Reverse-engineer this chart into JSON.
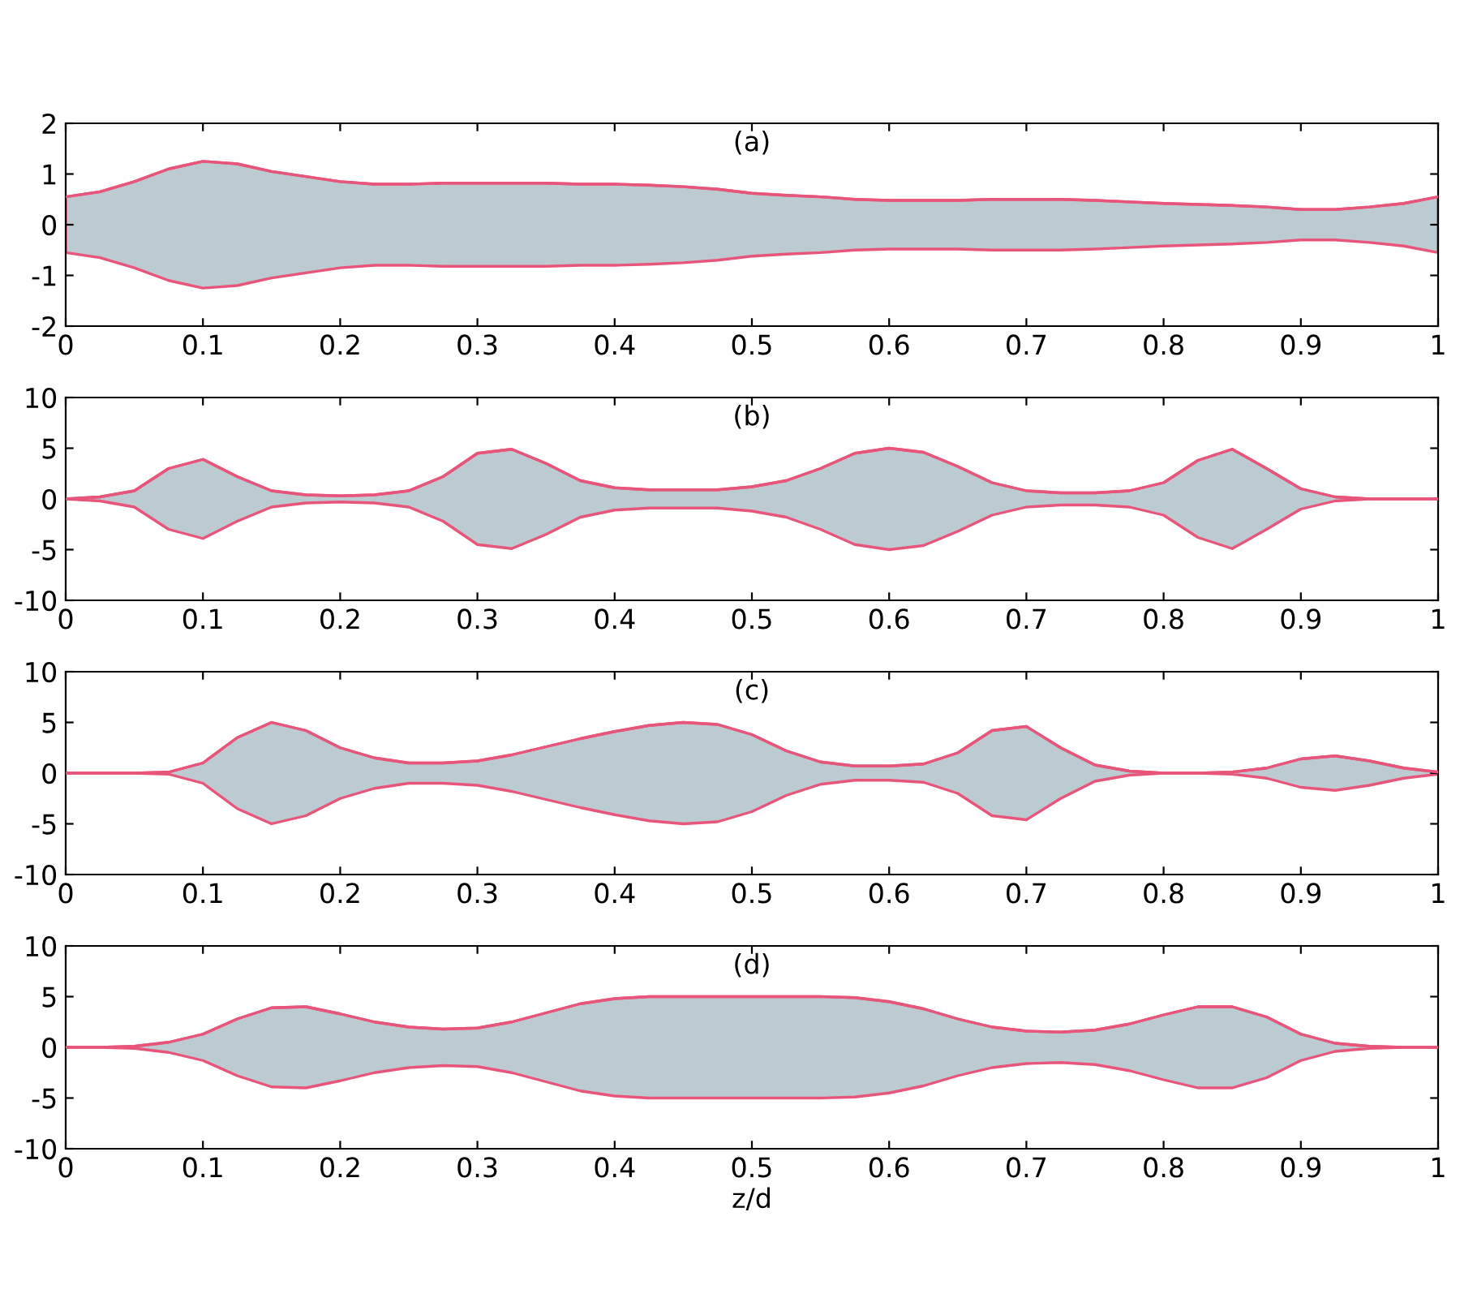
{
  "chart_data": [
    {
      "type": "line",
      "annotations": [
        "(a)"
      ],
      "xlim": [
        0,
        1
      ],
      "ylim": [
        -2,
        2
      ],
      "xticks": [
        0,
        0.1,
        0.2,
        0.3,
        0.4,
        0.5,
        0.6,
        0.7,
        0.8,
        0.9,
        1
      ],
      "yticks": [
        -2,
        -1,
        0,
        1,
        2
      ],
      "grid": false,
      "x": [
        0,
        0.025,
        0.05,
        0.075,
        0.1,
        0.125,
        0.15,
        0.175,
        0.2,
        0.225,
        0.25,
        0.275,
        0.3,
        0.325,
        0.35,
        0.375,
        0.4,
        0.425,
        0.45,
        0.475,
        0.5,
        0.525,
        0.55,
        0.575,
        0.6,
        0.625,
        0.65,
        0.675,
        0.7,
        0.725,
        0.75,
        0.775,
        0.8,
        0.825,
        0.85,
        0.875,
        0.9,
        0.925,
        0.95,
        0.975,
        1
      ],
      "series": [
        {
          "color": "#e8557a",
          "values": [
            0.55,
            0.65,
            0.85,
            1.1,
            1.25,
            1.2,
            1.05,
            0.95,
            0.85,
            0.8,
            0.8,
            0.82,
            0.82,
            0.82,
            0.82,
            0.8,
            0.8,
            0.78,
            0.75,
            0.7,
            0.62,
            0.58,
            0.55,
            0.5,
            0.48,
            0.48,
            0.48,
            0.5,
            0.5,
            0.5,
            0.48,
            0.45,
            0.42,
            0.4,
            0.38,
            0.35,
            0.3,
            0.3,
            0.35,
            0.42,
            0.55
          ],
          "lower": [
            -0.55,
            -0.65,
            -0.85,
            -1.1,
            -1.25,
            -1.2,
            -1.05,
            -0.95,
            -0.85,
            -0.8,
            -0.8,
            -0.82,
            -0.82,
            -0.82,
            -0.82,
            -0.8,
            -0.8,
            -0.78,
            -0.75,
            -0.7,
            -0.62,
            -0.58,
            -0.55,
            -0.5,
            -0.48,
            -0.48,
            -0.48,
            -0.5,
            -0.5,
            -0.5,
            -0.48,
            -0.45,
            -0.42,
            -0.4,
            -0.38,
            -0.35,
            -0.3,
            -0.3,
            -0.35,
            -0.42,
            -0.55
          ],
          "upper": [
            0.55,
            0.65,
            0.85,
            1.1,
            1.25,
            1.2,
            1.05,
            0.95,
            0.85,
            0.8,
            0.8,
            0.82,
            0.82,
            0.82,
            0.82,
            0.8,
            0.8,
            0.78,
            0.75,
            0.7,
            0.62,
            0.58,
            0.55,
            0.5,
            0.48,
            0.48,
            0.48,
            0.5,
            0.5,
            0.5,
            0.48,
            0.45,
            0.42,
            0.4,
            0.38,
            0.35,
            0.3,
            0.3,
            0.35,
            0.42,
            0.55
          ]
        }
      ]
    },
    {
      "type": "line",
      "annotations": [
        "(b)"
      ],
      "xlim": [
        0,
        1
      ],
      "ylim": [
        -10,
        10
      ],
      "xticks": [
        0,
        0.1,
        0.2,
        0.3,
        0.4,
        0.5,
        0.6,
        0.7,
        0.8,
        0.9,
        1
      ],
      "yticks": [
        -10,
        -5,
        0,
        5,
        10
      ],
      "grid": false,
      "x": [
        0,
        0.025,
        0.05,
        0.075,
        0.1,
        0.125,
        0.15,
        0.175,
        0.2,
        0.225,
        0.25,
        0.275,
        0.3,
        0.325,
        0.35,
        0.375,
        0.4,
        0.425,
        0.45,
        0.475,
        0.5,
        0.525,
        0.55,
        0.575,
        0.6,
        0.625,
        0.65,
        0.675,
        0.7,
        0.725,
        0.75,
        0.775,
        0.8,
        0.825,
        0.85,
        0.875,
        0.9,
        0.925,
        0.95,
        0.975,
        1
      ],
      "series": [
        {
          "color": "#e8557a",
          "values": [
            0,
            0.2,
            0.8,
            3,
            3.9,
            2.2,
            0.8,
            0.4,
            0.3,
            0.4,
            0.8,
            2.2,
            4.5,
            4.9,
            3.5,
            1.8,
            1.1,
            0.9,
            0.9,
            0.9,
            1.2,
            1.8,
            3,
            4.5,
            5,
            4.6,
            3.2,
            1.6,
            0.8,
            0.6,
            0.6,
            0.8,
            1.6,
            3.8,
            4.9,
            3,
            1,
            0.2,
            0,
            0,
            0
          ],
          "lower": [
            0,
            -0.2,
            -0.8,
            -3,
            -3.9,
            -2.2,
            -0.8,
            -0.4,
            -0.3,
            -0.4,
            -0.8,
            -2.2,
            -4.5,
            -4.9,
            -3.5,
            -1.8,
            -1.1,
            -0.9,
            -0.9,
            -0.9,
            -1.2,
            -1.8,
            -3,
            -4.5,
            -5,
            -4.6,
            -3.2,
            -1.6,
            -0.8,
            -0.6,
            -0.6,
            -0.8,
            -1.6,
            -3.8,
            -4.9,
            -3,
            -1,
            -0.2,
            0,
            0,
            0
          ],
          "upper": [
            0,
            0.2,
            0.8,
            3,
            3.9,
            2.2,
            0.8,
            0.4,
            0.3,
            0.4,
            0.8,
            2.2,
            4.5,
            4.9,
            3.5,
            1.8,
            1.1,
            0.9,
            0.9,
            0.9,
            1.2,
            1.8,
            3,
            4.5,
            5,
            4.6,
            3.2,
            1.6,
            0.8,
            0.6,
            0.6,
            0.8,
            1.6,
            3.8,
            4.9,
            3,
            1,
            0.2,
            0,
            0,
            0
          ]
        }
      ]
    },
    {
      "type": "line",
      "annotations": [
        "(c)"
      ],
      "xlim": [
        0,
        1
      ],
      "ylim": [
        -10,
        10
      ],
      "xticks": [
        0,
        0.1,
        0.2,
        0.3,
        0.4,
        0.5,
        0.6,
        0.7,
        0.8,
        0.9,
        1
      ],
      "yticks": [
        -10,
        -5,
        0,
        5,
        10
      ],
      "grid": false,
      "x": [
        0,
        0.025,
        0.05,
        0.075,
        0.1,
        0.125,
        0.15,
        0.175,
        0.2,
        0.225,
        0.25,
        0.275,
        0.3,
        0.325,
        0.35,
        0.375,
        0.4,
        0.425,
        0.45,
        0.475,
        0.5,
        0.525,
        0.55,
        0.575,
        0.6,
        0.625,
        0.65,
        0.675,
        0.7,
        0.725,
        0.75,
        0.775,
        0.8,
        0.825,
        0.85,
        0.875,
        0.9,
        0.925,
        0.95,
        0.975,
        1
      ],
      "series": [
        {
          "color": "#e8557a",
          "values": [
            0,
            0,
            0,
            0.1,
            1,
            3.5,
            5,
            4.2,
            2.5,
            1.5,
            1,
            1,
            1.2,
            1.8,
            2.6,
            3.4,
            4.1,
            4.7,
            5,
            4.8,
            3.8,
            2.2,
            1.1,
            0.7,
            0.7,
            0.9,
            2,
            4.2,
            4.6,
            2.5,
            0.8,
            0.2,
            0,
            0,
            0.1,
            0.5,
            1.4,
            1.7,
            1.2,
            0.5,
            0.1
          ],
          "lower": [
            0,
            0,
            0,
            -0.1,
            -1,
            -3.5,
            -5,
            -4.2,
            -2.5,
            -1.5,
            -1,
            -1,
            -1.2,
            -1.8,
            -2.6,
            -3.4,
            -4.1,
            -4.7,
            -5,
            -4.8,
            -3.8,
            -2.2,
            -1.1,
            -0.7,
            -0.7,
            -0.9,
            -2,
            -4.2,
            -4.6,
            -2.5,
            -0.8,
            -0.2,
            0,
            0,
            -0.1,
            -0.5,
            -1.4,
            -1.7,
            -1.2,
            -0.5,
            -0.1
          ],
          "upper": [
            0,
            0,
            0,
            0.1,
            1,
            3.5,
            5,
            4.2,
            2.5,
            1.5,
            1,
            1,
            1.2,
            1.8,
            2.6,
            3.4,
            4.1,
            4.7,
            5,
            4.8,
            3.8,
            2.2,
            1.1,
            0.7,
            0.7,
            0.9,
            2,
            4.2,
            4.6,
            2.5,
            0.8,
            0.2,
            0,
            0,
            0.1,
            0.5,
            1.4,
            1.7,
            1.2,
            0.5,
            0.1
          ]
        }
      ]
    },
    {
      "type": "line",
      "annotations": [
        "(d)"
      ],
      "xlabel": "z/d",
      "xlim": [
        0,
        1
      ],
      "ylim": [
        -10,
        10
      ],
      "xticks": [
        0,
        0.1,
        0.2,
        0.3,
        0.4,
        0.5,
        0.6,
        0.7,
        0.8,
        0.9,
        1
      ],
      "yticks": [
        -10,
        -5,
        0,
        5,
        10
      ],
      "grid": false,
      "x": [
        0,
        0.025,
        0.05,
        0.075,
        0.1,
        0.125,
        0.15,
        0.175,
        0.2,
        0.225,
        0.25,
        0.275,
        0.3,
        0.325,
        0.35,
        0.375,
        0.4,
        0.425,
        0.45,
        0.475,
        0.5,
        0.525,
        0.55,
        0.575,
        0.6,
        0.625,
        0.65,
        0.675,
        0.7,
        0.725,
        0.75,
        0.775,
        0.8,
        0.825,
        0.85,
        0.875,
        0.9,
        0.925,
        0.95,
        0.975,
        1
      ],
      "series": [
        {
          "color": "#e8557a",
          "values": [
            0,
            0,
            0.1,
            0.5,
            1.3,
            2.8,
            3.9,
            4,
            3.3,
            2.5,
            2,
            1.8,
            1.9,
            2.5,
            3.4,
            4.3,
            4.8,
            5,
            5,
            5,
            5,
            5,
            5,
            4.9,
            4.5,
            3.8,
            2.8,
            2,
            1.6,
            1.5,
            1.7,
            2.3,
            3.2,
            4,
            4,
            3,
            1.3,
            0.4,
            0.1,
            0,
            0
          ],
          "lower": [
            0,
            0,
            -0.1,
            -0.5,
            -1.3,
            -2.8,
            -3.9,
            -4,
            -3.3,
            -2.5,
            -2,
            -1.8,
            -1.9,
            -2.5,
            -3.4,
            -4.3,
            -4.8,
            -5,
            -5,
            -5,
            -5,
            -5,
            -5,
            -4.9,
            -4.5,
            -3.8,
            -2.8,
            -2,
            -1.6,
            -1.5,
            -1.7,
            -2.3,
            -3.2,
            -4,
            -4,
            -3,
            -1.3,
            -0.4,
            -0.1,
            0,
            0
          ],
          "upper": [
            0,
            0,
            0.1,
            0.5,
            1.3,
            2.8,
            3.9,
            4,
            3.3,
            2.5,
            2,
            1.8,
            1.9,
            2.5,
            3.4,
            4.3,
            4.8,
            5,
            5,
            5,
            5,
            5,
            5,
            4.9,
            4.5,
            3.8,
            2.8,
            2,
            1.6,
            1.5,
            1.7,
            2.3,
            3.2,
            4,
            4,
            3,
            1.3,
            0.4,
            0.1,
            0,
            0
          ]
        }
      ]
    }
  ]
}
